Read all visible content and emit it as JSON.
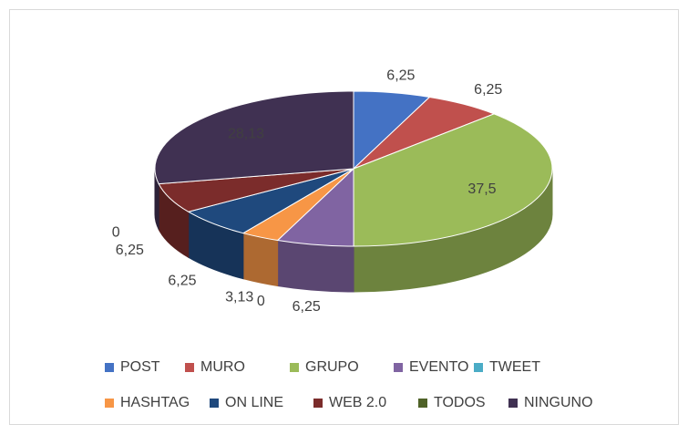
{
  "chart_data": {
    "type": "pie3d",
    "categories": [
      "POST",
      "MURO",
      "GRUPO",
      "EVENTO",
      "TWEET",
      "HASHTAG",
      "ON LINE",
      "WEB 2.0",
      "TODOS",
      "NINGUNO"
    ],
    "values": [
      6.25,
      6.25,
      37.5,
      6.25,
      0,
      3.13,
      6.25,
      6.25,
      0,
      28.13
    ],
    "value_labels": [
      "6,25",
      "6,25",
      "37,5",
      "6,25",
      "0",
      "3,13",
      "6,25",
      "6,25",
      "0",
      "28,13"
    ],
    "colors": [
      "#4472c4",
      "#c0504d",
      "#9bbb59",
      "#8064a2",
      "#4bacc6",
      "#f79646",
      "#1f497d",
      "#7b2c2b",
      "#4f6228",
      "#403152"
    ],
    "legend": "bottom"
  }
}
